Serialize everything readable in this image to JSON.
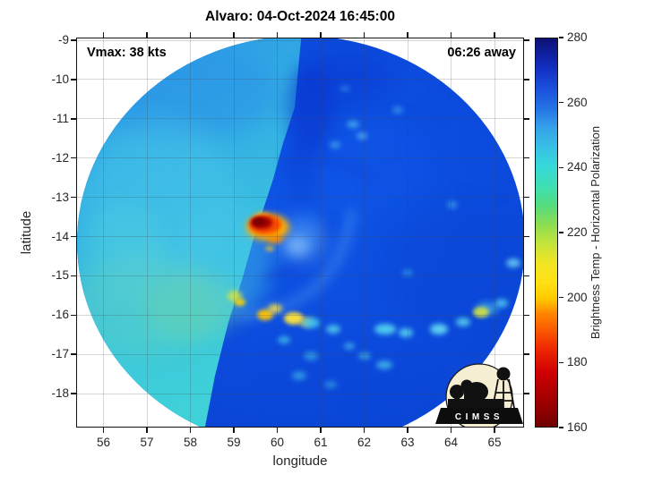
{
  "title": "Alvaro: 04-Oct-2024 16:45:00",
  "annotations": {
    "vmax": "Vmax: 38 kts",
    "time_to_pass": "06:26 away"
  },
  "axes": {
    "xlabel": "longitude",
    "ylabel": "latitude",
    "x_ticks": [
      "56",
      "57",
      "58",
      "59",
      "60",
      "61",
      "62",
      "63",
      "64",
      "65"
    ],
    "y_ticks": [
      "-9",
      "-10",
      "-11",
      "-12",
      "-13",
      "-14",
      "-15",
      "-16",
      "-17",
      "-18"
    ]
  },
  "colorbar": {
    "label": "Brightness Temp - Horizontal Polarization",
    "ticks": [
      "280",
      "260",
      "240",
      "220",
      "200",
      "180",
      "160"
    ]
  },
  "logo": {
    "caption": "CIMSS"
  },
  "chart_data": {
    "type": "heatmap",
    "title": "Alvaro: 04-Oct-2024 16:45:00",
    "xlabel": "longitude",
    "ylabel": "latitude",
    "xlim": [
      55.4,
      65.7
    ],
    "ylim": [
      -18.9,
      -8.9
    ],
    "x_ticks": [
      56,
      57,
      58,
      59,
      60,
      61,
      62,
      63,
      64,
      65
    ],
    "y_ticks": [
      -9,
      -10,
      -11,
      -12,
      -13,
      -14,
      -15,
      -16,
      -17,
      -18
    ],
    "grid": true,
    "colorbar": {
      "label": "Brightness Temp - Horizontal Polarization",
      "units": "K",
      "min": 160,
      "max": 280,
      "tick_step": 20,
      "orientation": "vertical-right",
      "colormap_stops": [
        {
          "value": 160,
          "color": "#700000"
        },
        {
          "value": 175,
          "color": "#cf0000"
        },
        {
          "value": 190,
          "color": "#fb5a00"
        },
        {
          "value": 200,
          "color": "#ffca00"
        },
        {
          "value": 210,
          "color": "#f2e523"
        },
        {
          "value": 222,
          "color": "#8edd52"
        },
        {
          "value": 234,
          "color": "#3edfb4"
        },
        {
          "value": 240,
          "color": "#36d9d9"
        },
        {
          "value": 250,
          "color": "#35a2e9"
        },
        {
          "value": 260,
          "color": "#1b50dc"
        },
        {
          "value": 270,
          "color": "#1331c5"
        },
        {
          "value": 280,
          "color": "#0d1173"
        }
      ]
    },
    "annotations": [
      {
        "text": "Vmax: 38 kts",
        "position": "top-left"
      },
      {
        "text": "06:26 away",
        "position": "top-right"
      }
    ],
    "swath": {
      "shape": "circular microwave-sensor swath, clipped at top and bottom of axes",
      "center_lon": 60.5,
      "center_lat": -13.9,
      "radius_deg": 5.15,
      "left_segment": {
        "description": "lighter cyan swath segment west of a diagonal scan boundary",
        "mean_temp_K": 246
      },
      "right_segment": {
        "description": "darker blue segment east of boundary",
        "mean_temp_K": 257
      },
      "boundary_lon_at_lat": {
        "-10": 60.1,
        "-13": 59.7,
        "-16": 58.9,
        "-18": 58.4
      }
    },
    "features": [
      {
        "name": "deep-convection-core",
        "lon": 59.95,
        "lat": -13.7,
        "min_temp_K": 163,
        "color": "dark red with orange-yellow fringe"
      },
      {
        "name": "light-warm-eye-region",
        "lon": 60.8,
        "lat": -13.9,
        "temp_K": 252
      },
      {
        "name": "rainband-yellow-cell",
        "lon": 60.55,
        "lat": -15.95,
        "temp_K": 205
      },
      {
        "name": "rainband-yellow-cell",
        "lon": 59.95,
        "lat": -15.85,
        "temp_K": 208
      },
      {
        "name": "rainband-yellow-cell",
        "lon": 58.85,
        "lat": -15.45,
        "temp_K": 215
      },
      {
        "name": "rainband-yellow-cell",
        "lon": 64.1,
        "lat": -15.85,
        "temp_K": 212
      },
      {
        "name": "rainband-cyan-arc",
        "lon_range": [
          60.9,
          64.7
        ],
        "lat": -16.3,
        "temp_K": 236
      },
      {
        "name": "scattered-cyan-cells",
        "lon_range": [
          60.2,
          62.2
        ],
        "lat_range": [
          -17.6,
          -16.6
        ],
        "temp_K": 240
      },
      {
        "name": "cyan-speckles-east-quadrant",
        "lon_range": [
          60.9,
          65.5
        ],
        "lat_range": [
          -14.8,
          -10.8
        ],
        "temp_K": 243
      }
    ]
  }
}
